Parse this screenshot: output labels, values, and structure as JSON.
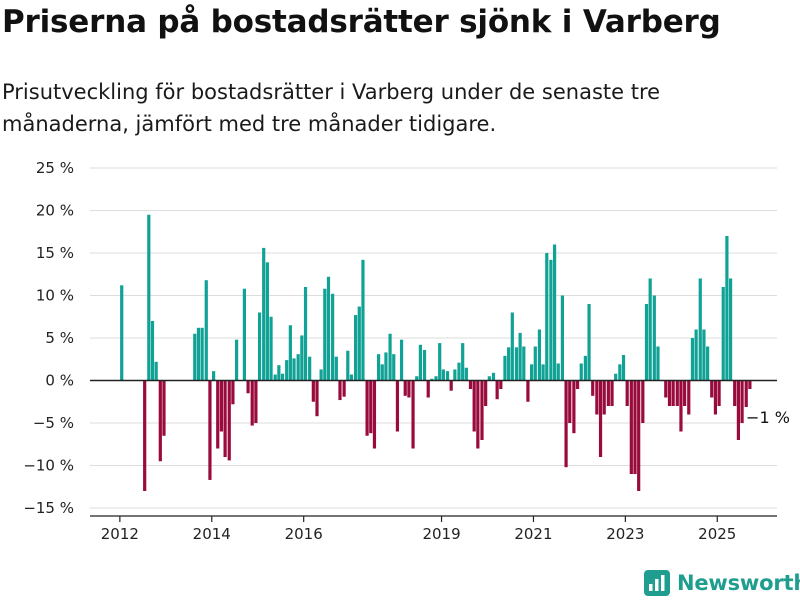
{
  "title": "Priserna på bostadsrätter sjönk i Varberg",
  "subtitle": "Prisutveckling för bostadsrätter i Varberg under de senaste tre månaderna, jämfört med tre månader tidigare.",
  "brand": {
    "name": "Newsworthy",
    "icon": "newsworthy-logo-icon"
  },
  "colors": {
    "positive": "#11a296",
    "negative": "#990a3d",
    "grid": "#dddddd",
    "axis": "#222222",
    "brand": "#1f9e8f"
  },
  "chart_data": {
    "type": "bar",
    "title": "Priserna på bostadsrätter sjönk i Varberg",
    "subtitle": "Prisutveckling för bostadsrätter i Varberg under de senaste tre månaderna, jämfört med tre månader tidigare.",
    "xlabel": "",
    "ylabel": "",
    "ylim": [
      -15,
      25
    ],
    "yticks": [
      25,
      20,
      15,
      10,
      5,
      0,
      -5,
      -10,
      -15
    ],
    "ytick_labels": [
      "25 %",
      "20 %",
      "15 %",
      "10 %",
      "5 %",
      "0 %",
      "−5 %",
      "−10 %",
      "−15 %"
    ],
    "xtick_labels": [
      "2012",
      "2014",
      "2016",
      "2019",
      "2021",
      "2023",
      "2025"
    ],
    "xtick_positions": [
      2012.0,
      2014.0,
      2016.0,
      2019.0,
      2021.0,
      2023.0,
      2025.0
    ],
    "grid": true,
    "annotation": {
      "text": "−1 %",
      "x": 2025.67,
      "value": -1
    },
    "x": [
      2012.04,
      2012.54,
      2012.63,
      2012.71,
      2012.79,
      2012.88,
      2012.96,
      2013.63,
      2013.71,
      2013.79,
      2013.88,
      2013.96,
      2014.04,
      2014.13,
      2014.21,
      2014.29,
      2014.38,
      2014.46,
      2014.54,
      2014.71,
      2014.79,
      2014.88,
      2014.96,
      2015.04,
      2015.13,
      2015.21,
      2015.29,
      2015.38,
      2015.46,
      2015.54,
      2015.63,
      2015.71,
      2015.79,
      2015.88,
      2015.96,
      2016.04,
      2016.13,
      2016.21,
      2016.29,
      2016.38,
      2016.46,
      2016.54,
      2016.63,
      2016.71,
      2016.79,
      2016.88,
      2016.96,
      2017.04,
      2017.13,
      2017.21,
      2017.29,
      2017.38,
      2017.46,
      2017.54,
      2017.63,
      2017.71,
      2017.79,
      2017.88,
      2017.96,
      2018.04,
      2018.13,
      2018.21,
      2018.29,
      2018.38,
      2018.46,
      2018.54,
      2018.63,
      2018.71,
      2018.79,
      2018.88,
      2018.96,
      2019.04,
      2019.13,
      2019.21,
      2019.29,
      2019.38,
      2019.46,
      2019.54,
      2019.63,
      2019.71,
      2019.79,
      2019.88,
      2019.96,
      2020.04,
      2020.13,
      2020.21,
      2020.29,
      2020.38,
      2020.46,
      2020.54,
      2020.63,
      2020.71,
      2020.79,
      2020.88,
      2020.96,
      2021.04,
      2021.13,
      2021.21,
      2021.29,
      2021.38,
      2021.46,
      2021.54,
      2021.63,
      2021.71,
      2021.79,
      2021.88,
      2021.96,
      2022.04,
      2022.13,
      2022.21,
      2022.29,
      2022.38,
      2022.46,
      2022.54,
      2022.63,
      2022.71,
      2022.79,
      2022.88,
      2022.96,
      2023.04,
      2023.13,
      2023.21,
      2023.29,
      2023.38,
      2023.46,
      2023.54,
      2023.63,
      2023.71,
      2023.79,
      2023.88,
      2023.96,
      2024.04,
      2024.13,
      2024.21,
      2024.29,
      2024.38,
      2024.46,
      2024.54,
      2024.63,
      2024.71,
      2024.79,
      2024.88,
      2024.96,
      2025.04,
      2025.13,
      2025.21,
      2025.29,
      2025.38,
      2025.46,
      2025.54,
      2025.63,
      2025.71
    ],
    "values": [
      11.2,
      -13,
      19.5,
      7,
      2.2,
      -9.5,
      -6.5,
      5.5,
      6.2,
      6.2,
      11.8,
      -11.7,
      1.1,
      -8,
      -6,
      -9,
      -9.4,
      -2.8,
      4.8,
      10.8,
      -1.5,
      -5.3,
      -5,
      8,
      15.6,
      13.9,
      7.5,
      0.7,
      1.8,
      0.8,
      2.4,
      6.5,
      2.6,
      3.1,
      5.3,
      11,
      2.8,
      -2.5,
      -4.2,
      1.3,
      10.8,
      12.2,
      10.2,
      2.8,
      -2.3,
      -1.9,
      3.5,
      0.7,
      7.7,
      8.7,
      14.2,
      -6.5,
      -6.2,
      -8,
      3.1,
      1.9,
      3.3,
      5.5,
      3.1,
      -6,
      4.8,
      -1.8,
      -2,
      -8,
      0.5,
      4.2,
      3.6,
      -2,
      0.2,
      0.5,
      4.4,
      1.3,
      1.1,
      -1.2,
      1.3,
      2.1,
      4.4,
      1.5,
      -1,
      -6,
      -8,
      -7,
      -3,
      0.5,
      0.9,
      -2.2,
      -1,
      2.9,
      3.9,
      8,
      3.9,
      5.6,
      4,
      -2.5,
      1.9,
      4,
      6,
      1.9,
      15,
      14.2,
      16,
      2,
      10,
      -10.2,
      -5,
      -6.2,
      -1,
      2,
      2.9,
      9,
      -1.8,
      -4,
      -9,
      -4,
      -3,
      -3,
      0.8,
      1.9,
      3,
      -3,
      -11,
      -11,
      -13,
      -5,
      9,
      12,
      10,
      4,
      0,
      -2,
      -3,
      -3,
      -3,
      -6,
      -3,
      -4,
      5,
      6,
      12,
      6,
      4,
      -2,
      -4,
      -3,
      11,
      17,
      12,
      -3,
      -7,
      -5,
      -4,
      -1
    ]
  }
}
